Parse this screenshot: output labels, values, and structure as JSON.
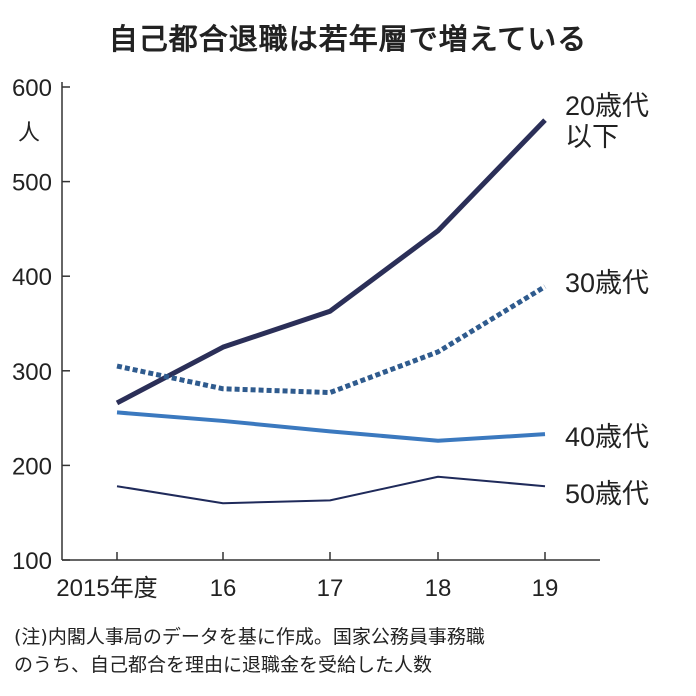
{
  "chart_data": {
    "type": "line",
    "title": "自己都合退職は若年層で増えている",
    "ylabel": "人",
    "categories": [
      "2015年度",
      "16",
      "17",
      "18",
      "19"
    ],
    "ylim": [
      100,
      600
    ],
    "yticks": [
      100,
      200,
      300,
      400,
      500,
      600
    ],
    "grid": false,
    "series": [
      {
        "name": "20歳代以下",
        "label_lines": [
          "20歳代",
          "以下"
        ],
        "values": [
          266,
          325,
          363,
          448,
          565
        ],
        "color": "#2b2f58",
        "style": "solid",
        "weight": "thick"
      },
      {
        "name": "30歳代",
        "values": [
          305,
          281,
          277,
          320,
          389
        ],
        "color": "#2f5b8e",
        "style": "dotted",
        "weight": "thick"
      },
      {
        "name": "40歳代",
        "values": [
          256,
          247,
          236,
          226,
          233
        ],
        "color": "#3b79bf",
        "style": "solid",
        "weight": "medium"
      },
      {
        "name": "50歳代",
        "values": [
          178,
          160,
          163,
          188,
          178
        ],
        "color": "#1f2a5a",
        "style": "solid",
        "weight": "thin"
      }
    ]
  },
  "notes": [
    "(注)内閣人事局のデータを基に作成。国家公務員事務職",
    "のうち、自己都合を理由に退職金を受給した人数"
  ]
}
